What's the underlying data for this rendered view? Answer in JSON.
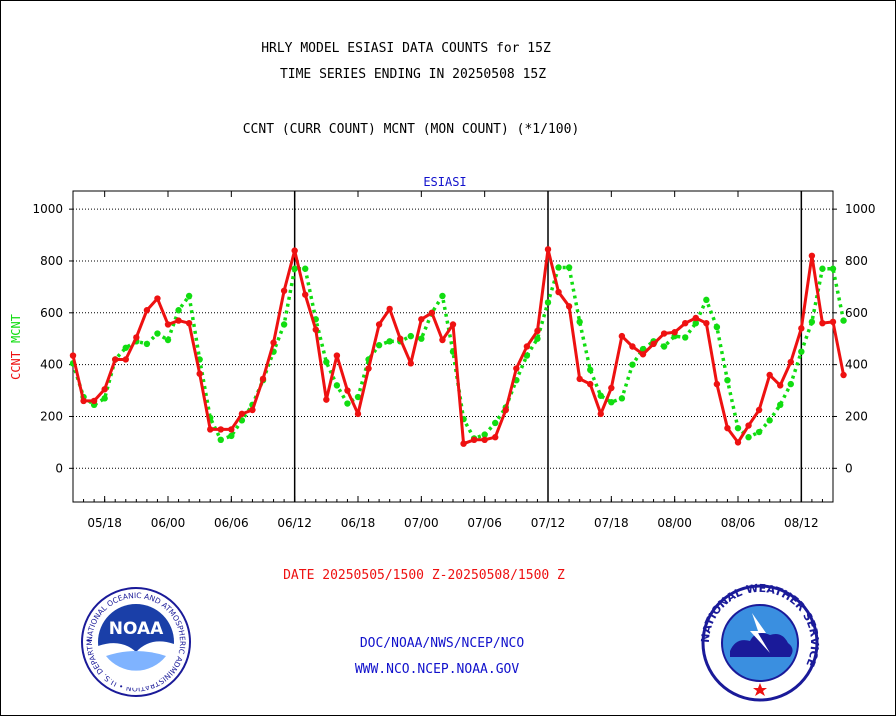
{
  "header": {
    "title_line1": "HRLY MODEL ESIASI DATA COUNTS for 15Z",
    "title_line2": "TIME SERIES ENDING IN 20250508 15Z",
    "subtitle": "CCNT (CURR COUNT) MCNT (MON COUNT) (*1/100)"
  },
  "footer": {
    "date_range": "DATE 20250505/1500 Z-20250508/1500 Z",
    "org_line": "DOC/NOAA/NWS/NCEP/NCO",
    "url_line": "WWW.NCO.NCEP.NOAA.GOV"
  },
  "logos": {
    "noaa_text": "NOAA",
    "noaa_ring_text": "NATIONAL OCEANIC AND ATMOSPHERIC ADMINISTRATION • U.S. DEPARTMENT OF COMMERCE •",
    "nws_ring_text": "NATIONAL WEATHER SERVICE"
  },
  "colors": {
    "ccnt": "#ee1111",
    "mcnt": "#11dd11",
    "panel_title": "#1111cc",
    "date_text": "#ee1111",
    "footer_text": "#1111cc"
  },
  "chart_data": {
    "type": "line",
    "title": "ESIASI",
    "ylabel_parts": [
      {
        "text": "CCNT",
        "color": "#ee1111"
      },
      {
        "text": "MCNT",
        "color": "#11dd11"
      }
    ],
    "ylim": [
      -130,
      1070
    ],
    "yticks": [
      0,
      200,
      400,
      600,
      800,
      1000
    ],
    "ytick_labels": [
      "0",
      "200",
      "400",
      "600",
      "800",
      "1000"
    ],
    "xlim": [
      0,
      72
    ],
    "xticks": [
      3,
      9,
      15,
      21,
      27,
      33,
      39,
      45,
      51,
      57,
      63,
      69
    ],
    "xtick_labels": [
      "05/18",
      "06/00",
      "06/06",
      "06/12",
      "06/18",
      "07/00",
      "07/06",
      "07/12",
      "07/18",
      "08/00",
      "08/06",
      "08/12"
    ],
    "day_dividers": [
      21,
      45,
      69
    ],
    "grid": true,
    "series": [
      {
        "name": "CCNT",
        "color": "#ee1111",
        "values": [
          435,
          260,
          260,
          305,
          420,
          420,
          505,
          610,
          655,
          555,
          570,
          560,
          365,
          150,
          150,
          150,
          210,
          225,
          345,
          485,
          685,
          840,
          670,
          535,
          265,
          435,
          300,
          210,
          385,
          555,
          615,
          500,
          405,
          575,
          600,
          495,
          555,
          95,
          110,
          110,
          120,
          225,
          385,
          470,
          530,
          845,
          680,
          625,
          345,
          325,
          210,
          310,
          510,
          470,
          440,
          480,
          520,
          525,
          560,
          580,
          560,
          325,
          155,
          100,
          165,
          225,
          360,
          320,
          410,
          540,
          820,
          560,
          565,
          360
        ]
      },
      {
        "name": "MCNT",
        "color": "#11dd11",
        "values": [
          405,
          275,
          245,
          270,
          420,
          465,
          490,
          480,
          520,
          495,
          610,
          665,
          420,
          195,
          110,
          125,
          185,
          245,
          340,
          450,
          555,
          770,
          770,
          575,
          410,
          320,
          250,
          275,
          420,
          475,
          490,
          490,
          510,
          500,
          600,
          665,
          450,
          190,
          115,
          130,
          175,
          235,
          340,
          435,
          500,
          640,
          775,
          775,
          565,
          380,
          280,
          255,
          270,
          400,
          460,
          490,
          470,
          510,
          505,
          560,
          650,
          545,
          340,
          155,
          120,
          140,
          185,
          245,
          325,
          450,
          565,
          770,
          770,
          570
        ]
      }
    ]
  }
}
